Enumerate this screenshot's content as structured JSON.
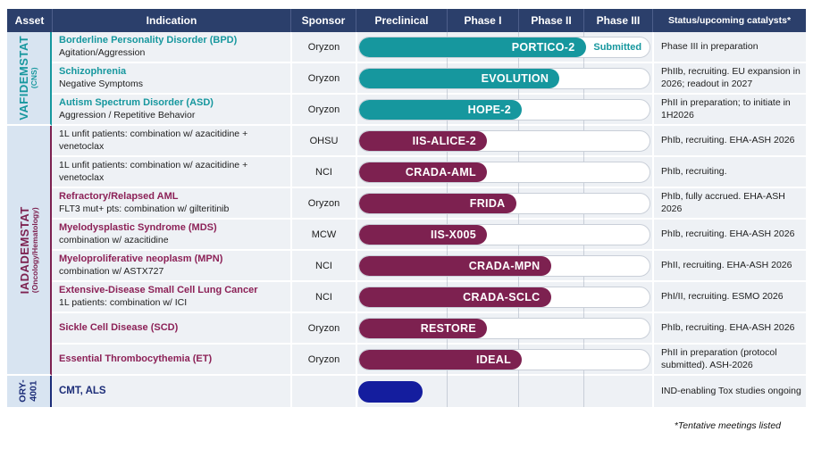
{
  "colors": {
    "header_bg": "#2b3f6b",
    "teal": "#16979e",
    "maroon": "#7d2150",
    "blue": "#141d9e",
    "asset_col_bg": "#d8e4f1",
    "row_bg": "#eef1f5"
  },
  "header": {
    "columns": [
      "Asset",
      "Indication",
      "Sponsor",
      "Preclinical",
      "Phase I",
      "Phase II",
      "Phase III",
      "Status/upcoming catalysts*"
    ]
  },
  "asset_groups": [
    {
      "drug": "VAFIDEMSTAT",
      "area": "(CNS)"
    },
    {
      "drug": "IADADEMSTAT",
      "area": "(Oncology/Hematology)"
    },
    {
      "drug_line1": "ORY-",
      "drug_line2": "4001"
    }
  ],
  "rows": [
    {
      "title": "Borderline Personality Disorder (BPD)",
      "subtitle": "Agitation/Aggression",
      "sponsor": "Oryzon",
      "trial": "PORTICO-2",
      "extra_label": "Submitted",
      "fill_pct": 78,
      "color": "teal",
      "status": "Phase III in preparation"
    },
    {
      "title": "Schizophrenia",
      "subtitle": "Negative Symptoms",
      "sponsor": "Oryzon",
      "trial": "EVOLUTION",
      "fill_pct": 69,
      "color": "teal",
      "status": "PhIIb, recruiting. EU expansion in 2026; readout in 2027"
    },
    {
      "title": "Autism Spectrum Disorder (ASD)",
      "subtitle": "Aggression / Repetitive Behavior",
      "sponsor": "Oryzon",
      "trial": "HOPE-2",
      "fill_pct": 56,
      "color": "teal",
      "status": "PhII in preparation; to initiate in 1H2026"
    },
    {
      "title": "",
      "subtitle": "1L unfit patients: combination w/ azacitidine + venetoclax",
      "sponsor": "OHSU",
      "trial": "IIS-ALICE-2",
      "fill_pct": 44,
      "color": "maroon",
      "status": "PhIb, recruiting. EHA-ASH 2026"
    },
    {
      "title": "",
      "subtitle": "1L unfit patients: combination w/ azacitidine + venetoclax",
      "sponsor": "NCI",
      "trial": "CRADA-AML",
      "fill_pct": 44,
      "color": "maroon",
      "status": "PhIb, recruiting."
    },
    {
      "title": "Refractory/Relapsed AML",
      "subtitle": "FLT3 mut+ pts: combination w/ gilteritinib",
      "sponsor": "Oryzon",
      "trial": "FRIDA",
      "fill_pct": 54,
      "color": "maroon",
      "status": "PhIb, fully accrued. EHA-ASH 2026"
    },
    {
      "title": "Myelodysplastic Syndrome (MDS)",
      "subtitle": "combination w/ azacitidine",
      "sponsor": "MCW",
      "trial": "IIS-X005",
      "fill_pct": 44,
      "color": "maroon",
      "status": "PhIb, recruiting. EHA-ASH 2026"
    },
    {
      "title": "Myeloproliferative neoplasm (MPN)",
      "subtitle": "combination w/ ASTX727",
      "sponsor": "NCI",
      "trial": "CRADA-MPN",
      "fill_pct": 66,
      "color": "maroon",
      "status": "PhII, recruiting. EHA-ASH 2026"
    },
    {
      "title": "Extensive-Disease Small Cell Lung Cancer",
      "subtitle": "1L patients: combination w/ ICI",
      "sponsor": "NCI",
      "trial": "CRADA-SCLC",
      "fill_pct": 66,
      "color": "maroon",
      "status": "PhI/II, recruiting. ESMO 2026"
    },
    {
      "title": "Sickle Cell Disease (SCD)",
      "subtitle": "",
      "sponsor": "Oryzon",
      "trial": "RESTORE",
      "fill_pct": 44,
      "color": "maroon",
      "status": "PhIb, recruiting. EHA-ASH 2026"
    },
    {
      "title": "Essential Thrombocythemia (ET)",
      "subtitle": "",
      "sponsor": "Oryzon",
      "trial": "IDEAL",
      "fill_pct": 56,
      "color": "maroon",
      "status": "PhII in preparation (protocol submitted). ASH-2026"
    },
    {
      "title": "CMT, ALS",
      "subtitle": "",
      "sponsor": "",
      "trial": "",
      "fill_pct": 22,
      "color": "blue",
      "status": "IND-enabling Tox studies ongoing"
    }
  ],
  "footnote": "*Tentative meetings listed"
}
